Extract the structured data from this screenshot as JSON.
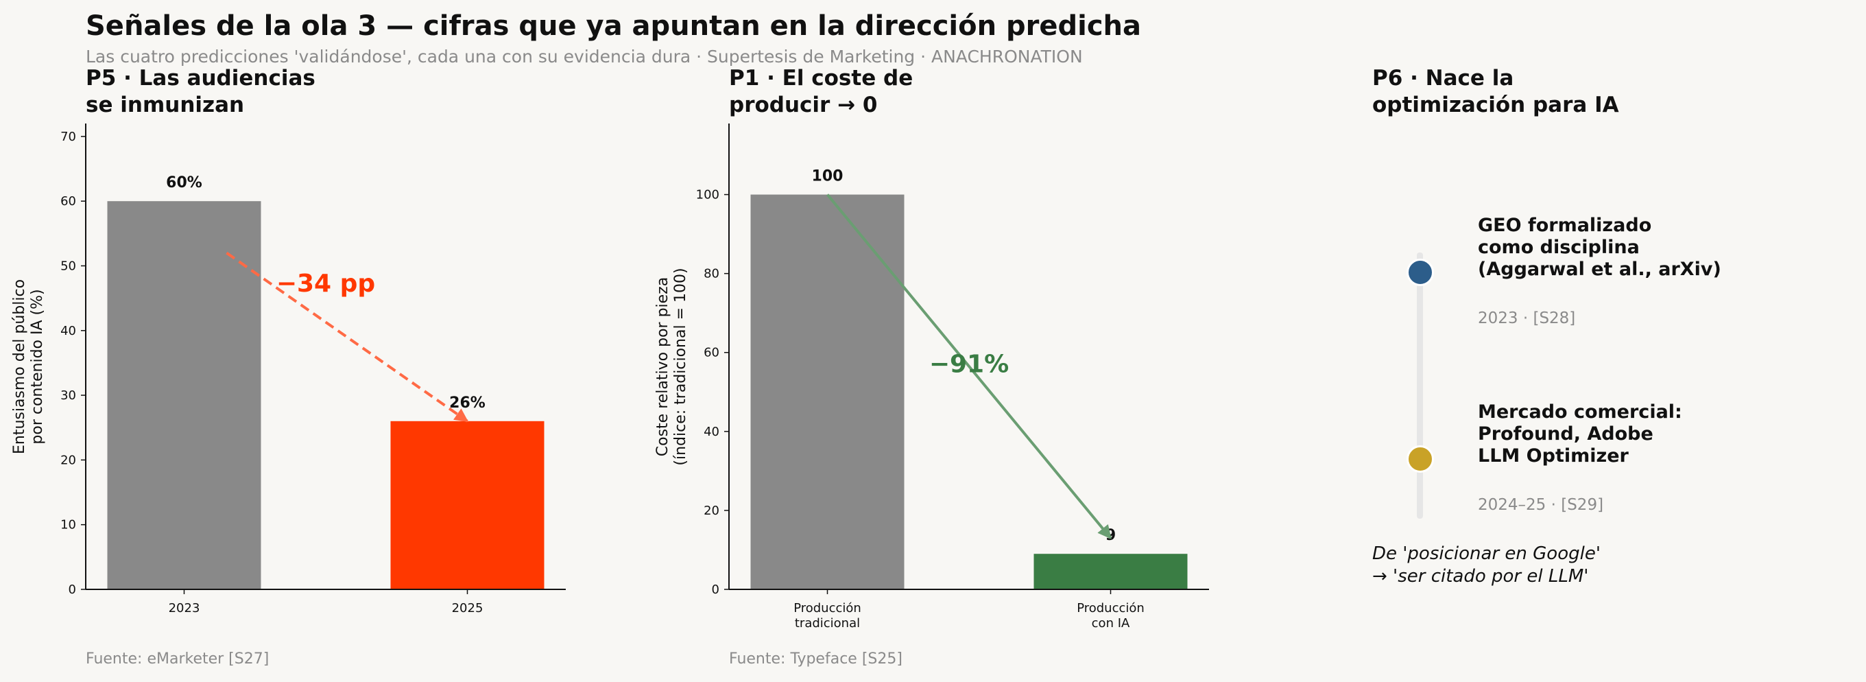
{
  "header": {
    "title": "Señales de la ola 3 — cifras que ya apuntan en la dirección predicha",
    "subtitle": "Las cuatro predicciones 'validándose', cada una con su evidencia dura · Supertesis de Marketing · ANACHRONATION"
  },
  "chart_data": [
    {
      "type": "bar",
      "title_lines": [
        "P5 · Las audiencias",
        "se inmunizan"
      ],
      "categories": [
        "2023",
        "2025"
      ],
      "values": [
        60,
        26
      ],
      "value_labels": [
        "60%",
        "26%"
      ],
      "ylabel_lines": [
        "Entusiasmo del público",
        "por contenido IA (%)"
      ],
      "ylim": [
        0,
        72
      ],
      "yticks": [
        0,
        10,
        20,
        30,
        40,
        50,
        60,
        70
      ],
      "bar_colors": [
        "#898989",
        "#ff3800"
      ],
      "annotation": {
        "text": "−34 pp",
        "color": "#ff3800",
        "at": [
          0.5,
          46
        ],
        "arrow_from": [
          0.15,
          52
        ],
        "arrow_to": [
          1,
          26
        ],
        "style": "dashed"
      },
      "source": "Fuente: eMarketer [S27]"
    },
    {
      "type": "bar",
      "title_lines": [
        "P1 · El coste de",
        "producir → 0"
      ],
      "categories": [
        [
          "Producción",
          "tradicional"
        ],
        [
          "Producción",
          "con IA"
        ]
      ],
      "values": [
        100,
        9
      ],
      "value_labels": [
        "100",
        "9"
      ],
      "ylabel_lines": [
        "Coste relativo por pieza",
        "(índice: tradicional = 100)"
      ],
      "ylim": [
        0,
        118
      ],
      "yticks": [
        0,
        20,
        40,
        60,
        80,
        100
      ],
      "bar_colors": [
        "#898989",
        "#3a7d44"
      ],
      "annotation": {
        "text": "−91%",
        "color": "#3a7d44",
        "at": [
          0.5,
          55
        ],
        "arrow_from": [
          0,
          100
        ],
        "arrow_to": [
          1,
          13
        ],
        "style": "solid"
      },
      "source": "Fuente: Typeface [S25]"
    }
  ],
  "timeline": {
    "title_lines": [
      "P6 · Nace la",
      "optimización para IA"
    ],
    "events": [
      {
        "title_lines": [
          "GEO formalizado",
          "como disciplina",
          "(Aggarwal et al., arXiv)"
        ],
        "meta": "2023 · [S28]",
        "color": "#2c5d8a"
      },
      {
        "title_lines": [
          "Mercado comercial:",
          "Profound, Adobe",
          "LLM Optimizer"
        ],
        "meta": "2024–25 · [S29]",
        "color": "#c9a227"
      }
    ],
    "note_lines": [
      "De 'posicionar en Google'",
      "→ 'ser citado por el LLM'"
    ]
  }
}
